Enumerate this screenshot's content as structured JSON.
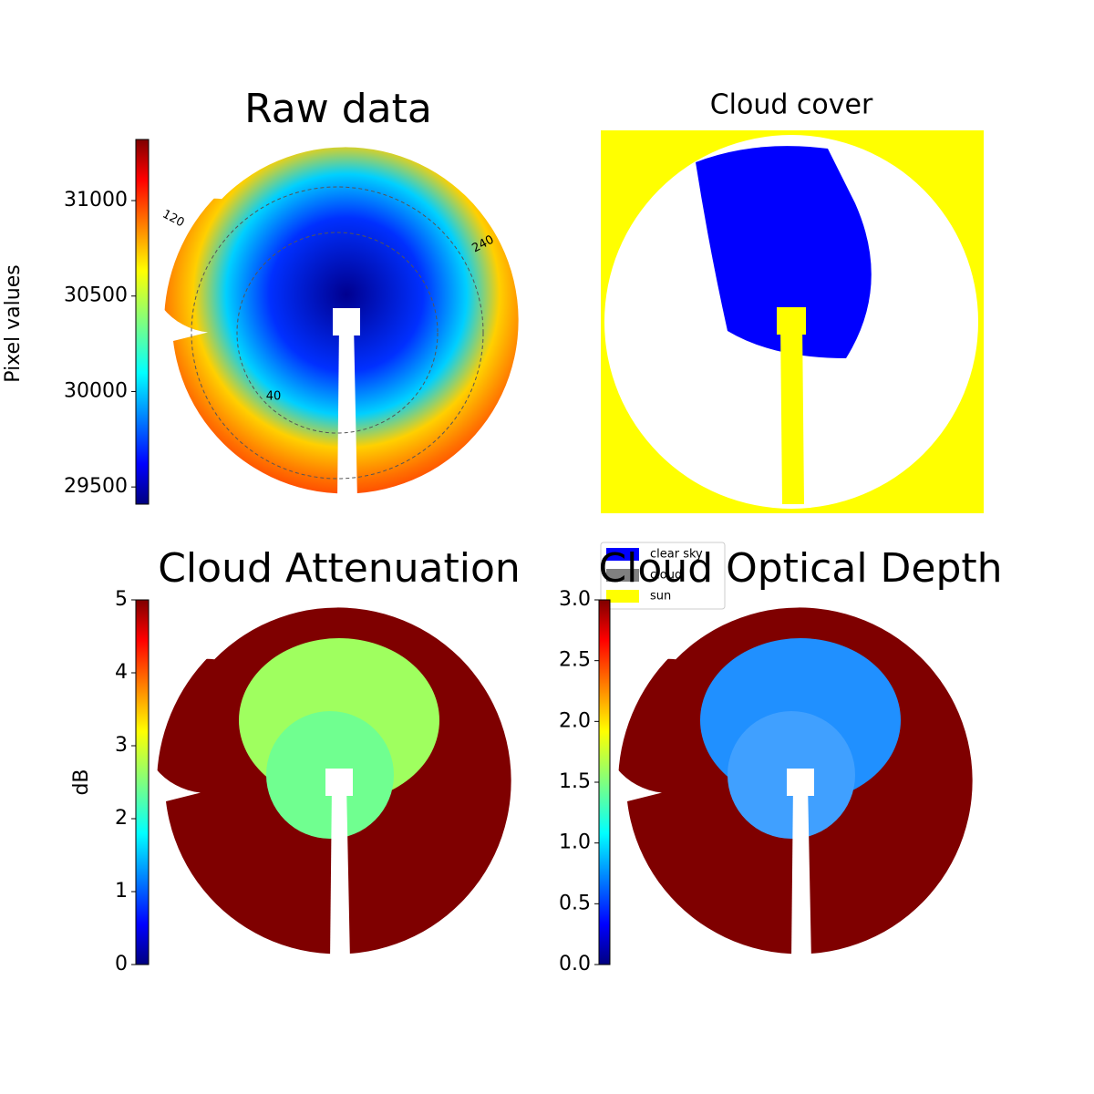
{
  "chart_data": [
    {
      "type": "image",
      "title": "Raw data",
      "colormap": "jet",
      "colorbar": {
        "label": "Pixel values",
        "lim": [
          29410,
          31320
        ],
        "ticks": [
          29500,
          30000,
          30500,
          31000
        ]
      },
      "annotations": [
        "120",
        "240",
        "40"
      ]
    },
    {
      "type": "image",
      "title": "Cloud cover",
      "legend": [
        {
          "name": "clear sky",
          "color": "#0000ff"
        },
        {
          "name": "cloud",
          "color": "#808080"
        },
        {
          "name": "sun",
          "color": "#ffff00"
        }
      ]
    },
    {
      "type": "image",
      "title": "Cloud Attenuation",
      "colormap": "jet",
      "colorbar": {
        "label": "dB",
        "lim": [
          0,
          5
        ],
        "ticks": [
          0,
          1,
          2,
          3,
          4,
          5
        ]
      }
    },
    {
      "type": "image",
      "title": "Cloud Optical Depth",
      "colormap": "jet",
      "colorbar": {
        "lim": [
          0,
          3
        ],
        "ticks": [
          {
            "value": 0,
            "label": "0.0"
          },
          {
            "value": 0.5,
            "label": "0.5"
          },
          {
            "value": 1,
            "label": "1.0"
          },
          {
            "value": 1.5,
            "label": "1.5"
          },
          {
            "value": 2,
            "label": "2.0"
          },
          {
            "value": 2.5,
            "label": "2.5"
          },
          {
            "value": 3,
            "label": "3.0"
          }
        ]
      }
    }
  ]
}
